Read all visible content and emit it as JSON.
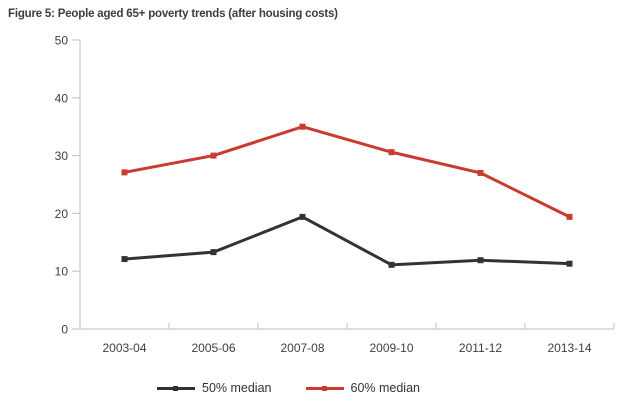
{
  "title": "Figure 5: People aged 65+ poverty trends (after housing costs)",
  "chart_data": {
    "type": "line",
    "categories": [
      "2003-04",
      "2005-06",
      "2007-08",
      "2009-10",
      "2011-12",
      "2013-14"
    ],
    "series": [
      {
        "name": "50% median",
        "color": "#333333",
        "values": [
          12.1,
          13.3,
          19.4,
          11.1,
          11.9,
          11.3
        ]
      },
      {
        "name": "60% median",
        "color": "#cb3a30",
        "values": [
          27.1,
          30.0,
          35.0,
          30.6,
          27.0,
          19.4
        ]
      }
    ],
    "title": "Figure 5: People aged 65+ poverty trends (after housing costs)",
    "xlabel": "",
    "ylabel": "",
    "ylim": [
      0,
      50
    ],
    "yticks": [
      0,
      10,
      20,
      30,
      40,
      50
    ],
    "grid": false,
    "legend_position": "bottom",
    "marker": "square",
    "axis_color": "#c9c9c9",
    "tick_label_color": "#404040"
  }
}
